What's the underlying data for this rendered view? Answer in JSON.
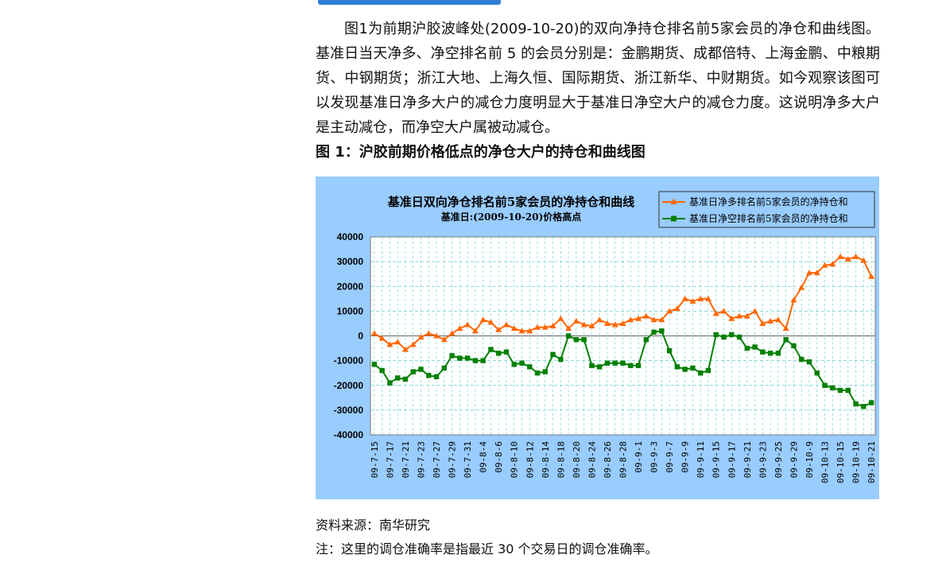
{
  "text": {
    "paragraph": "图1为前期沪胶波峰处(2009-10-20)的双向净持仓排名前5家会员的净仓和曲线图。基准日当天净多、净空排名前 5 的会员分别是：金鹏期货、成都倍特、上海金鹏、中粮期货、中钢期货；浙江大地、上海久恒、国际期货、浙江新华、中财期货。如今观察该图可以发现基准日净多大户的减仓力度明显大于基准日净空大户的减仓力度。这说明净多大户是主动减仓，而净空大户属被动减仓。",
    "figure_title": "图 1：沪胶前期价格低点的净仓大户的持仓和曲线图",
    "source": "资料来源：南华研究",
    "note": "注：这里的调仓准确率是指最近 30 个交易日的调仓准确率。"
  },
  "colors": {
    "accent_band": "#2f7fd6",
    "chart_background": "#99ccff",
    "plot_background": "#ffffff",
    "series_long": "#ff6600",
    "series_short": "#008000",
    "grid": "#66cccc"
  },
  "chart_data": {
    "type": "line",
    "title": "基准日双向净仓排名前5家会员的净持仓和曲线",
    "subtitle": "基准日:(2009-10-20)价格高点",
    "ylim": [
      -40000,
      40000
    ],
    "yticks": [
      40000,
      30000,
      20000,
      10000,
      0,
      -10000,
      -20000,
      -30000,
      -40000
    ],
    "xtick_labels": [
      "09-7-15",
      "09-7-17",
      "09-7-21",
      "09-7-23",
      "09-7-27",
      "09-7-29",
      "09-7-31",
      "09-8-4",
      "09-8-6",
      "09-8-10",
      "09-8-12",
      "09-8-14",
      "09-8-18",
      "09-8-20",
      "09-8-24",
      "09-8-26",
      "09-8-28",
      "09-9-1",
      "09-9-3",
      "09-9-7",
      "09-9-9",
      "09-9-11",
      "09-9-15",
      "09-9-17",
      "09-9-21",
      "09-9-23",
      "09-9-25",
      "09-9-29",
      "09-10-9",
      "09-10-13",
      "09-10-15",
      "09-10-19",
      "09-10-21"
    ],
    "grid": true,
    "legend_position": "top-right",
    "series": [
      {
        "name": "基准日净多排名前5家会员的净持仓和",
        "marker": "triangle",
        "values": [
          1000,
          -1000,
          -3500,
          -2500,
          -5500,
          -3500,
          -500,
          1000,
          0,
          -1500,
          1000,
          3000,
          4500,
          2000,
          6500,
          5500,
          2500,
          4500,
          3000,
          2000,
          2000,
          3500,
          3500,
          4000,
          7000,
          3000,
          6000,
          4500,
          4000,
          6500,
          5000,
          4500,
          5000,
          6500,
          7000,
          8000,
          6500,
          6500,
          10000,
          11000,
          15000,
          14000,
          15000,
          15000,
          9000,
          10000,
          7000,
          8000,
          8000,
          10000,
          5000,
          6000,
          6500,
          3000,
          14500,
          19500,
          25500,
          25500,
          28500,
          29000,
          32000,
          31000,
          32000,
          30500,
          24000
        ]
      },
      {
        "name": "基准日净空排名前5家会员的净持仓和",
        "marker": "square",
        "values": [
          -11500,
          -14000,
          -19000,
          -17000,
          -17500,
          -14500,
          -13500,
          -16000,
          -16500,
          -13000,
          -8000,
          -9000,
          -9000,
          -10000,
          -10000,
          -5500,
          -7000,
          -6500,
          -11500,
          -11000,
          -12500,
          -15000,
          -14500,
          -7500,
          -9500,
          0,
          -1500,
          -1500,
          -12000,
          -12500,
          -11000,
          -11000,
          -11000,
          -12000,
          -12000,
          -1500,
          1500,
          2000,
          -6000,
          -12500,
          -13500,
          -13000,
          -15000,
          -14000,
          500,
          -500,
          500,
          -500,
          -5000,
          -4500,
          -6500,
          -7000,
          -7000,
          -1500,
          -4000,
          -9500,
          -10500,
          -15000,
          -20000,
          -21000,
          -22000,
          -22000,
          -27500,
          -28500,
          -27000
        ]
      }
    ]
  }
}
